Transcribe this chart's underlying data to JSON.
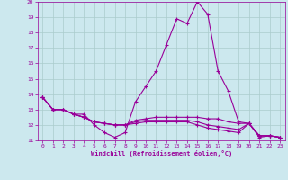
{
  "xlabel": "Windchill (Refroidissement éolien,°C)",
  "background_color": "#cce8ee",
  "grid_color": "#aacccc",
  "line_color": "#990099",
  "xlim": [
    -0.5,
    23.5
  ],
  "ylim": [
    11,
    20
  ],
  "xticks": [
    0,
    1,
    2,
    3,
    4,
    5,
    6,
    7,
    8,
    9,
    10,
    11,
    12,
    13,
    14,
    15,
    16,
    17,
    18,
    19,
    20,
    21,
    22,
    23
  ],
  "yticks": [
    11,
    12,
    13,
    14,
    15,
    16,
    17,
    18,
    19,
    20
  ],
  "curves": [
    [
      13.8,
      13.0,
      13.0,
      12.7,
      12.7,
      12.0,
      11.5,
      11.2,
      11.5,
      13.5,
      14.5,
      15.5,
      17.2,
      18.9,
      18.6,
      20.0,
      19.2,
      15.5,
      14.2,
      12.2,
      12.1,
      11.2,
      11.3,
      11.2
    ],
    [
      13.8,
      13.0,
      13.0,
      12.7,
      12.5,
      12.2,
      12.1,
      12.0,
      12.0,
      12.3,
      12.4,
      12.5,
      12.5,
      12.5,
      12.5,
      12.5,
      12.4,
      12.4,
      12.2,
      12.1,
      12.1,
      11.3,
      11.3,
      11.2
    ],
    [
      13.8,
      13.0,
      13.0,
      12.7,
      12.5,
      12.2,
      12.1,
      12.0,
      12.0,
      12.2,
      12.3,
      12.3,
      12.3,
      12.3,
      12.3,
      12.2,
      12.0,
      11.9,
      11.8,
      11.7,
      12.1,
      11.3,
      11.3,
      11.2
    ],
    [
      13.8,
      13.0,
      13.0,
      12.7,
      12.5,
      12.2,
      12.1,
      12.0,
      12.0,
      12.1,
      12.2,
      12.2,
      12.2,
      12.2,
      12.2,
      12.0,
      11.8,
      11.7,
      11.6,
      11.5,
      12.1,
      11.3,
      11.3,
      11.2
    ]
  ]
}
